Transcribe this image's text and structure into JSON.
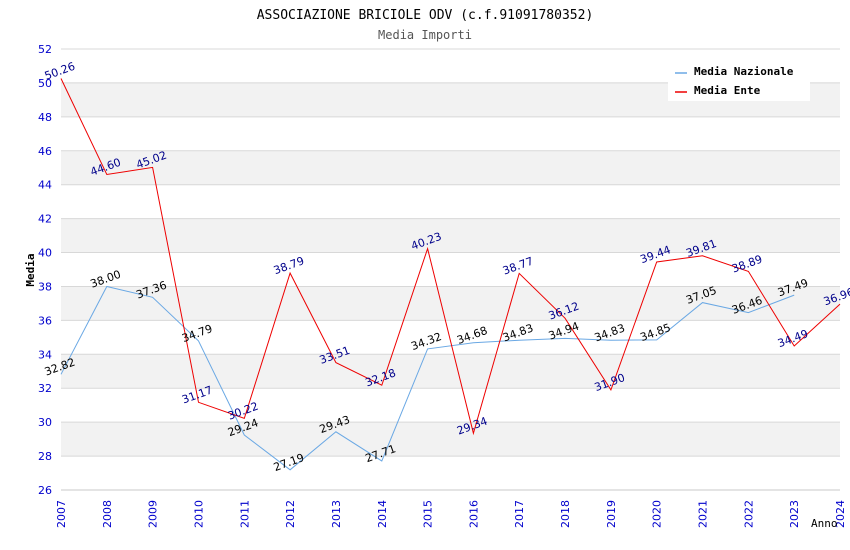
{
  "chart_data": {
    "type": "line",
    "title": "ASSOCIAZIONE BRICIOLE ODV (c.f.91091780352)",
    "subtitle": "Media Importi",
    "xlabel": "Anno",
    "ylabel": "Media",
    "x": [
      "2007",
      "2008",
      "2009",
      "2010",
      "2011",
      "2012",
      "2013",
      "2014",
      "2015",
      "2016",
      "2017",
      "2018",
      "2019",
      "2020",
      "2021",
      "2022",
      "2023",
      "2024"
    ],
    "ylim": [
      26,
      52
    ],
    "yticks": [
      "26",
      "28",
      "30",
      "32",
      "34",
      "36",
      "38",
      "40",
      "42",
      "44",
      "46",
      "48",
      "50",
      "52"
    ],
    "legend_position": "top-right",
    "series": [
      {
        "name": "Media Nazionale",
        "color": "#6aa8e4",
        "label_color": "#000000",
        "values": [
          32.82,
          38.0,
          37.36,
          34.79,
          29.24,
          27.19,
          29.43,
          27.71,
          34.32,
          34.68,
          34.83,
          34.94,
          34.83,
          34.85,
          37.05,
          36.46,
          37.49,
          null
        ],
        "labels": [
          "32.82",
          "38.00",
          "37.36",
          "34.79",
          "29.24",
          "27.19",
          "29.43",
          "27.71",
          "34.32",
          "34.68",
          "34.83",
          "34.94",
          "34.83",
          "34.85",
          "37.05",
          "36.46",
          "37.49",
          ""
        ]
      },
      {
        "name": "Media Ente",
        "color": "#ee0000",
        "label_color": "#00008b",
        "values": [
          50.26,
          44.6,
          45.02,
          31.17,
          30.22,
          38.79,
          33.51,
          32.18,
          40.23,
          29.34,
          38.77,
          36.12,
          31.9,
          39.44,
          39.81,
          38.89,
          34.49,
          36.96
        ],
        "labels": [
          "50.26",
          "44.60",
          "45.02",
          "31.17",
          "30.22",
          "38.79",
          "33.51",
          "32.18",
          "40.23",
          "29.34",
          "38.77",
          "36.12",
          "31.90",
          "39.44",
          "39.81",
          "38.89",
          "34.49",
          "36.96"
        ]
      }
    ],
    "colors": {
      "band": "#f2f2f2",
      "grid": "#d8d8d8",
      "axis_text": "#0000cc",
      "title_text": "#000000",
      "subtitle_text": "#555555"
    }
  }
}
